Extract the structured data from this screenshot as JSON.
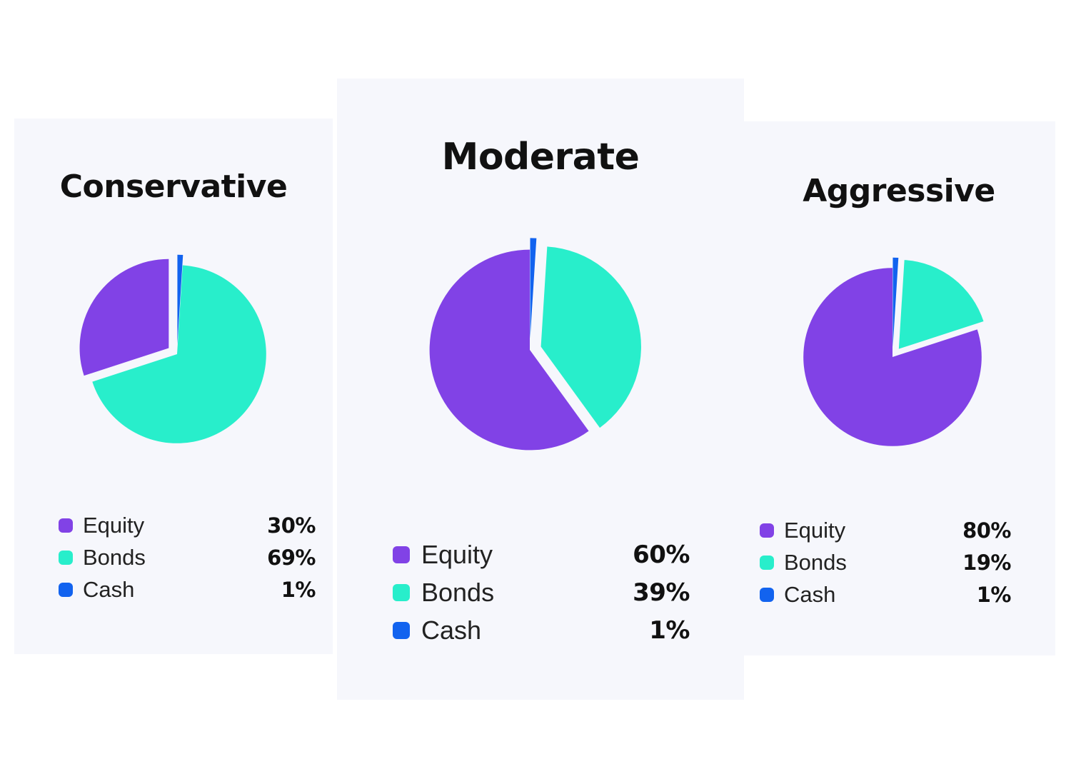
{
  "colors": {
    "equity": "#8142e6",
    "bonds": "#28eecb",
    "cash": "#1263ef",
    "card_background": "#f6f7fc"
  },
  "chart_data": [
    {
      "type": "pie",
      "title": "Conservative",
      "categories": [
        "Equity",
        "Bonds",
        "Cash"
      ],
      "values": [
        30,
        69,
        1
      ],
      "value_labels": [
        "30%",
        "69%",
        "1%"
      ],
      "colors": [
        "#8142e6",
        "#28eecb",
        "#1263ef"
      ],
      "exploded": [
        "Equity",
        "Cash"
      ],
      "legend": "bottom"
    },
    {
      "type": "pie",
      "title": "Moderate",
      "categories": [
        "Equity",
        "Bonds",
        "Cash"
      ],
      "values": [
        60,
        39,
        1
      ],
      "value_labels": [
        "60%",
        "39%",
        "1%"
      ],
      "colors": [
        "#8142e6",
        "#28eecb",
        "#1263ef"
      ],
      "exploded": [
        "Bonds",
        "Cash"
      ],
      "legend": "bottom"
    },
    {
      "type": "pie",
      "title": "Aggressive",
      "categories": [
        "Equity",
        "Bonds",
        "Cash"
      ],
      "values": [
        80,
        19,
        1
      ],
      "value_labels": [
        "80%",
        "19%",
        "1%"
      ],
      "colors": [
        "#8142e6",
        "#28eecb",
        "#1263ef"
      ],
      "exploded": [
        "Bonds",
        "Cash"
      ],
      "legend": "bottom"
    }
  ]
}
